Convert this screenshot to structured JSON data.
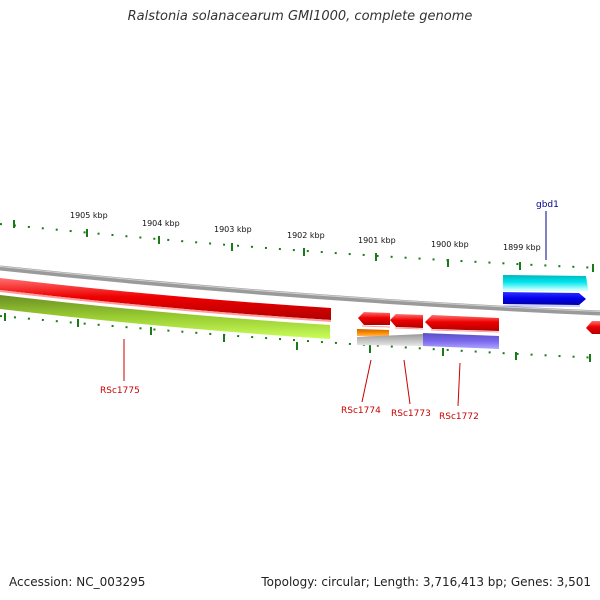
{
  "title": "Ralstonia solanacearum GMI1000, complete genome",
  "footer": {
    "accession": "Accession: NC_003295",
    "summary": "Topology: circular; Length: 3,716,413 bp; Genes: 3,501"
  },
  "ruler_labels": [
    "1905 kbp",
    "1904 kbp",
    "1903 kbp",
    "1902 kbp",
    "1901 kbp",
    "1900 kbp",
    "1899 kbp"
  ],
  "gene_labels": {
    "gbd1": "gbd1",
    "rsc1775": "RSc1775",
    "rsc1774": "RSc1774",
    "rsc1773": "RSc1773",
    "rsc1772": "RSc1772"
  },
  "colors": {
    "backbone": "#8c8c8c",
    "cds_forward": "#00e5ee",
    "gene_forward": "#0000ee",
    "gene_reverse": "#ee0000",
    "cds_reverse": "#9acd32",
    "cds_orange": "#ff8c00",
    "cds_grey": "#bfbfbf",
    "cds_purple": "#7b68ee",
    "tick": "#006400",
    "label_red": "#cc0000",
    "label_blue": "#00008b"
  }
}
